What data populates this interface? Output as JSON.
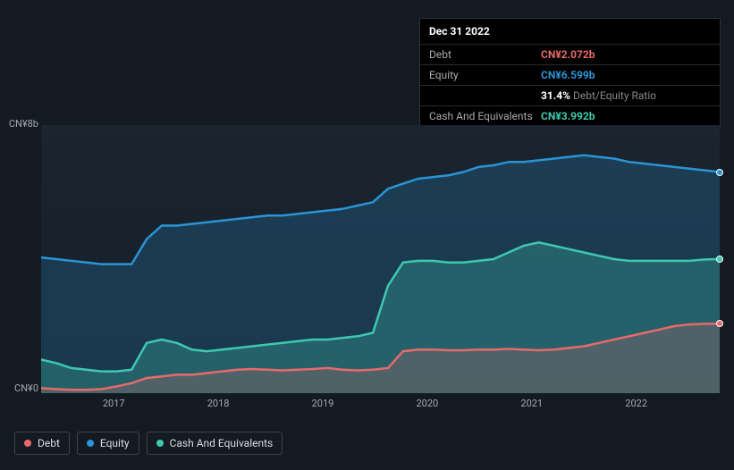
{
  "tooltip": {
    "date": "Dec 31 2022",
    "rows": [
      {
        "label": "Debt",
        "value": "CN¥2.072b",
        "class": "debt"
      },
      {
        "label": "Equity",
        "value": "CN¥6.599b",
        "class": "equity"
      },
      {
        "label": "",
        "ratio_pct": "31.4%",
        "ratio_lbl": "Debt/Equity Ratio"
      },
      {
        "label": "Cash And Equivalents",
        "value": "CN¥3.992b",
        "class": "cash"
      }
    ]
  },
  "chart": {
    "type": "area",
    "background_color": "#131a22",
    "plot_bg_color": "#1a2530",
    "y_axis": {
      "max_label": "CN¥8b",
      "min_label": "CN¥0",
      "ymin": 0,
      "ymax": 8,
      "label_color": "#aaaaaa",
      "label_fontsize": 11
    },
    "x_axis": {
      "labels": [
        "2017",
        "2018",
        "2019",
        "2020",
        "2021",
        "2022"
      ],
      "positions_pct": [
        10.7,
        26.1,
        41.5,
        56.9,
        72.3,
        87.7
      ],
      "label_color": "#aaaaaa",
      "label_fontsize": 11
    },
    "series": [
      {
        "name": "Equity",
        "color": "#2a94d6",
        "fill": "rgba(42,148,214,0.22)",
        "line_width": 2.5,
        "data": [
          4.05,
          4.0,
          3.95,
          3.9,
          3.85,
          3.85,
          3.85,
          4.6,
          5.0,
          5.0,
          5.05,
          5.1,
          5.15,
          5.2,
          5.25,
          5.3,
          5.3,
          5.35,
          5.4,
          5.45,
          5.5,
          5.6,
          5.7,
          6.1,
          6.25,
          6.4,
          6.45,
          6.5,
          6.6,
          6.75,
          6.8,
          6.9,
          6.9,
          6.95,
          7.0,
          7.05,
          7.1,
          7.05,
          7.0,
          6.9,
          6.85,
          6.8,
          6.75,
          6.7,
          6.65,
          6.6
        ]
      },
      {
        "name": "Cash And Equivalents",
        "color": "#3fc8b0",
        "fill": "rgba(63,200,176,0.28)",
        "line_width": 2.5,
        "data": [
          1.0,
          0.9,
          0.75,
          0.7,
          0.65,
          0.65,
          0.7,
          1.5,
          1.6,
          1.5,
          1.3,
          1.25,
          1.3,
          1.35,
          1.4,
          1.45,
          1.5,
          1.55,
          1.6,
          1.6,
          1.65,
          1.7,
          1.8,
          3.2,
          3.9,
          3.95,
          3.95,
          3.9,
          3.9,
          3.95,
          4.0,
          4.2,
          4.4,
          4.5,
          4.4,
          4.3,
          4.2,
          4.1,
          4.0,
          3.95,
          3.95,
          3.95,
          3.95,
          3.95,
          3.99,
          4.0
        ]
      },
      {
        "name": "Debt",
        "color": "#e86a6a",
        "fill": "rgba(232,106,106,0.22)",
        "line_width": 2.5,
        "data": [
          0.15,
          0.12,
          0.1,
          0.1,
          0.12,
          0.2,
          0.3,
          0.45,
          0.5,
          0.55,
          0.55,
          0.6,
          0.65,
          0.7,
          0.72,
          0.7,
          0.68,
          0.7,
          0.72,
          0.75,
          0.7,
          0.68,
          0.7,
          0.75,
          1.25,
          1.3,
          1.3,
          1.28,
          1.28,
          1.3,
          1.3,
          1.32,
          1.3,
          1.28,
          1.3,
          1.35,
          1.4,
          1.5,
          1.6,
          1.7,
          1.8,
          1.9,
          2.0,
          2.05,
          2.07,
          2.07
        ]
      }
    ],
    "legend": {
      "items": [
        {
          "label": "Debt",
          "color": "#e86a6a"
        },
        {
          "label": "Equity",
          "color": "#2a94d6"
        },
        {
          "label": "Cash And Equivalents",
          "color": "#3fc8b0"
        }
      ],
      "border_color": "#3a4550",
      "text_color": "#dddddd",
      "fontsize": 12
    },
    "end_dots": [
      {
        "series": "Equity",
        "color": "#2a94d6"
      },
      {
        "series": "Cash And Equivalents",
        "color": "#3fc8b0"
      },
      {
        "series": "Debt",
        "color": "#e86a6a"
      }
    ]
  }
}
